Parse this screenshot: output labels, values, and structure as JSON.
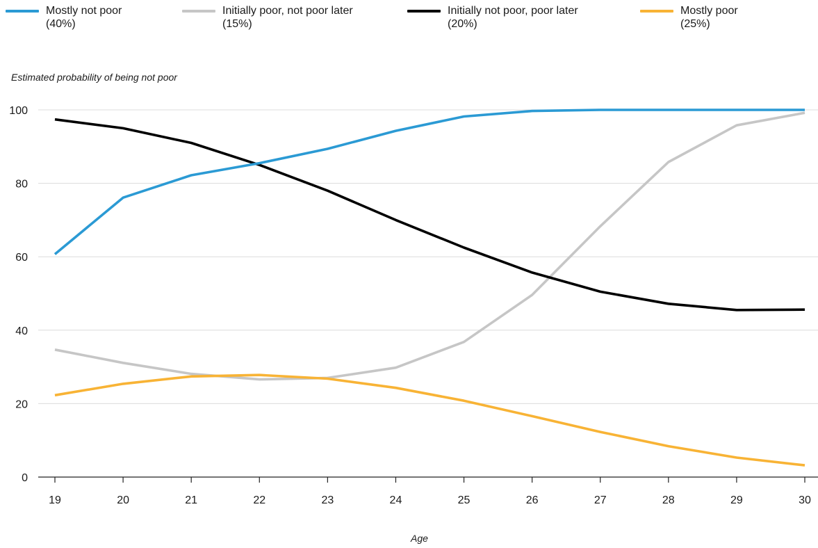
{
  "chart_data": {
    "type": "line",
    "title": "",
    "xlabel": "Age",
    "ylabel": "Estimated probability of being not poor",
    "x": [
      19,
      20,
      21,
      22,
      23,
      24,
      25,
      26,
      27,
      28,
      29,
      30
    ],
    "xlim": [
      19,
      30
    ],
    "ylim": [
      0,
      100
    ],
    "yticks": [
      0,
      20,
      40,
      60,
      80,
      100
    ],
    "grid": "horizontal",
    "legend_position": "top",
    "series": [
      {
        "name": "Mostly not poor",
        "share": "(40%)",
        "color": "#2b9ad4",
        "values": [
          60.7,
          76.1,
          82.2,
          85.5,
          89.4,
          94.3,
          98.2,
          99.7,
          100,
          100,
          100,
          100
        ]
      },
      {
        "name": "Initially poor, not poor later",
        "share": "(15%)",
        "color": "#c6c6c6",
        "values": [
          34.7,
          31.1,
          28.1,
          26.6,
          27.0,
          29.8,
          36.8,
          49.6,
          68.3,
          85.8,
          95.8,
          99.2
        ]
      },
      {
        "name": "Initially not poor, poor later",
        "share": "(20%)",
        "color": "#000000",
        "values": [
          97.4,
          95.0,
          91.0,
          85.0,
          78.0,
          70.0,
          62.5,
          55.7,
          50.5,
          47.2,
          45.5,
          45.6
        ]
      },
      {
        "name": "Mostly poor",
        "share": "(25%)",
        "color": "#f8b335",
        "values": [
          22.3,
          25.4,
          27.4,
          27.8,
          26.8,
          24.3,
          20.8,
          16.6,
          12.3,
          8.4,
          5.3,
          3.2
        ]
      }
    ]
  }
}
